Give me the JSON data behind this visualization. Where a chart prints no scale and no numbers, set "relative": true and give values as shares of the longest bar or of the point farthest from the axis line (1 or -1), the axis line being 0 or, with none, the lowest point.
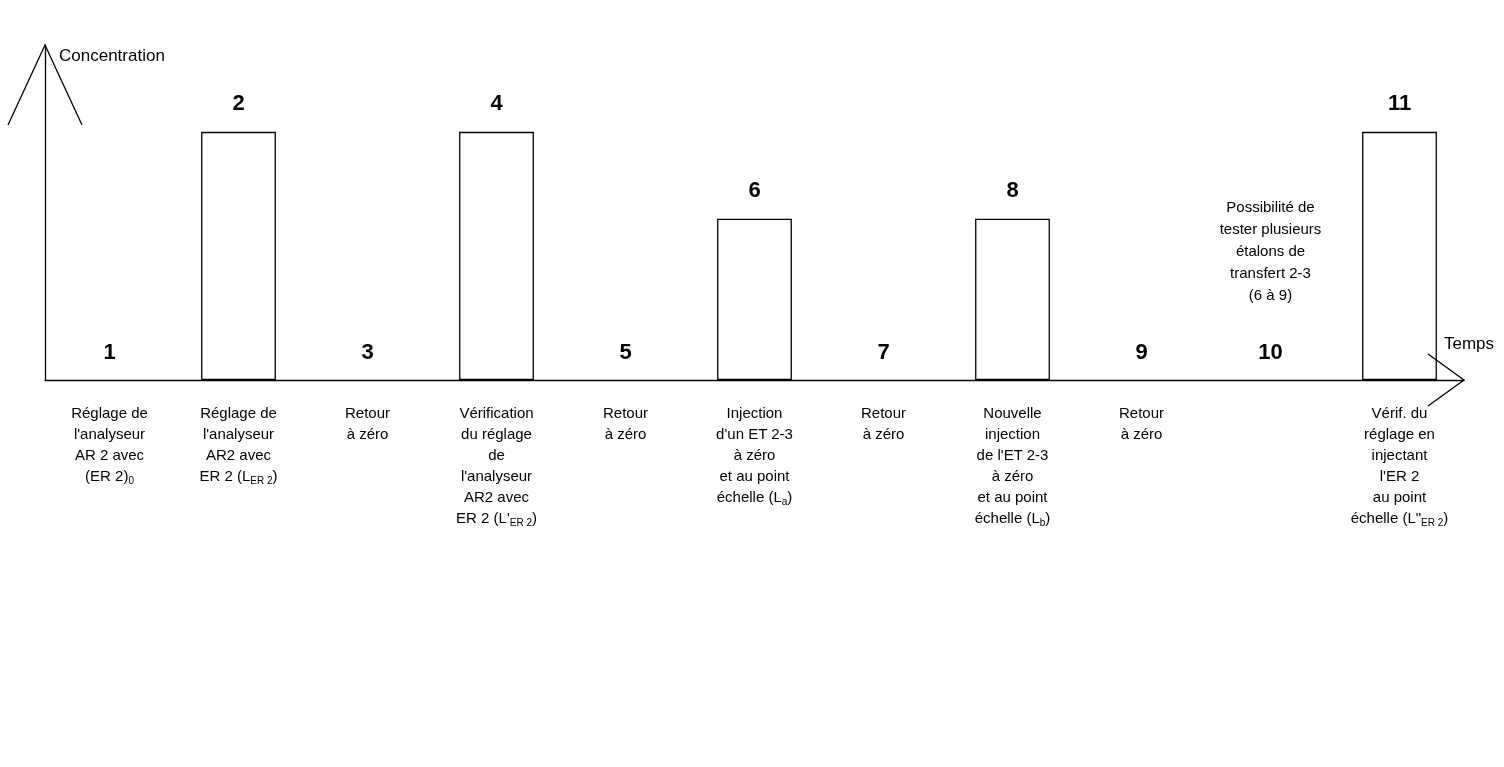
{
  "chart_data": {
    "type": "bar",
    "relative": true,
    "ylabel": "Concentration",
    "xlabel": "Temps",
    "color": "#ffffff",
    "grid": false,
    "categories": [
      "Réglage de\nl'analyseur\nAR 2 avec\n(ER 2)$_{0}$",
      "Réglage de\nl'analyseur\nAR2 avec\nER 2 (L$_{ER 2}$)",
      "Retour\nà zéro",
      "Vérification\ndu réglage\nde\nl'analyseur\nAR2 avec\nER 2 (L'$_{ER 2}$)",
      "Retour\nà zéro",
      "Injection\nd'un ET 2-3\nà zéro\net au point\néchelle (L$_{a}$)",
      "Retour\nà zéro",
      "Nouvelle\ninjection\nde l'ET 2-3\nà zéro\net au point\néchelle (L$_{b}$)",
      "Retour\nà zéro",
      null,
      "Vérif. du\nréglage en\ninjectant\nl'ER 2\nau point\néchelle (L\"$_{ER 2}$)"
    ],
    "values": [
      0,
      1,
      0,
      1,
      0,
      0.65,
      0,
      0.65,
      0,
      0,
      1
    ],
    "annotations": [
      "1",
      "2",
      "3",
      "4",
      "5",
      "6",
      "7",
      "8",
      "9",
      "10",
      "11",
      "Possibilité de\ntester plusieurs\nétalons de\ntransfert 2-3\n(6 à 9)"
    ]
  }
}
